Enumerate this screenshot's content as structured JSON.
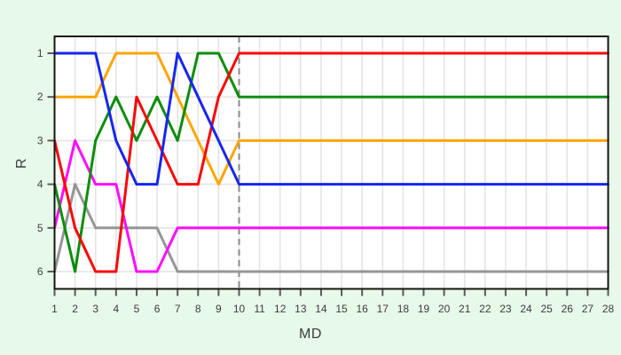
{
  "page": {
    "background_color": "#e7f9e9",
    "plot_background_color": "#ffffff",
    "grid_color": "#e4e4e4",
    "border_color": "#141414",
    "tick_color": "#5a5a5a",
    "tick_label_color": "#3c3c3c"
  },
  "chart_data": {
    "type": "line",
    "title": "",
    "xlabel": "MD",
    "ylabel": "R",
    "x": [
      1,
      2,
      3,
      4,
      5,
      6,
      7,
      8,
      9,
      10,
      11,
      12,
      13,
      14,
      15,
      16,
      17,
      18,
      19,
      20,
      21,
      22,
      23,
      24,
      25,
      26,
      27,
      28
    ],
    "x_tick_labels": [
      "1",
      "2",
      "3",
      "4",
      "5",
      "6",
      "7",
      "8",
      "9",
      "10",
      "11",
      "12",
      "13",
      "14",
      "15",
      "16",
      "17",
      "18",
      "19",
      "20",
      "21",
      "22",
      "23",
      "24",
      "25",
      "26",
      "27",
      "28"
    ],
    "y_tick_labels": [
      "1",
      "2",
      "3",
      "4",
      "5",
      "6"
    ],
    "y_ticks": [
      1,
      2,
      3,
      4,
      5,
      6
    ],
    "xlim": [
      1,
      28
    ],
    "ylim": [
      1,
      6
    ],
    "y_axis_inverted": true,
    "grid": true,
    "legend_position": "none",
    "annotations": [
      {
        "type": "vline",
        "x": 10,
        "style": "dashed",
        "color": "#8a8a8a"
      }
    ],
    "series": [
      {
        "name": "gray-line",
        "color": "#969696",
        "values": [
          6,
          4,
          5,
          5,
          5,
          5,
          6,
          6,
          6,
          6,
          6,
          6,
          6,
          6,
          6,
          6,
          6,
          6,
          6,
          6,
          6,
          6,
          6,
          6,
          6,
          6,
          6,
          6
        ]
      },
      {
        "name": "magenta-line",
        "color": "#ff0cff",
        "values": [
          5,
          3,
          4,
          4,
          6,
          6,
          5,
          5,
          5,
          5,
          5,
          5,
          5,
          5,
          5,
          5,
          5,
          5,
          5,
          5,
          5,
          5,
          5,
          5,
          5,
          5,
          5,
          5
        ]
      },
      {
        "name": "orange-line",
        "color": "#ffa504",
        "values": [
          2,
          2,
          2,
          1,
          1,
          1,
          2,
          3,
          4,
          3,
          3,
          3,
          3,
          3,
          3,
          3,
          3,
          3,
          3,
          3,
          3,
          3,
          3,
          3,
          3,
          3,
          3,
          3
        ]
      },
      {
        "name": "green-line",
        "color": "#0b8d0b",
        "values": [
          4,
          6,
          3,
          2,
          3,
          2,
          3,
          1,
          1,
          2,
          2,
          2,
          2,
          2,
          2,
          2,
          2,
          2,
          2,
          2,
          2,
          2,
          2,
          2,
          2,
          2,
          2,
          2
        ]
      },
      {
        "name": "red-line",
        "color": "#fb0607",
        "values": [
          3,
          5,
          6,
          6,
          2,
          3,
          4,
          4,
          2,
          1,
          1,
          1,
          1,
          1,
          1,
          1,
          1,
          1,
          1,
          1,
          1,
          1,
          1,
          1,
          1,
          1,
          1,
          1
        ]
      },
      {
        "name": "blue-line",
        "color": "#1626f0",
        "values": [
          1,
          1,
          1,
          3,
          4,
          4,
          1,
          2,
          3,
          4,
          4,
          4,
          4,
          4,
          4,
          4,
          4,
          4,
          4,
          4,
          4,
          4,
          4,
          4,
          4,
          4,
          4,
          4
        ]
      }
    ]
  }
}
